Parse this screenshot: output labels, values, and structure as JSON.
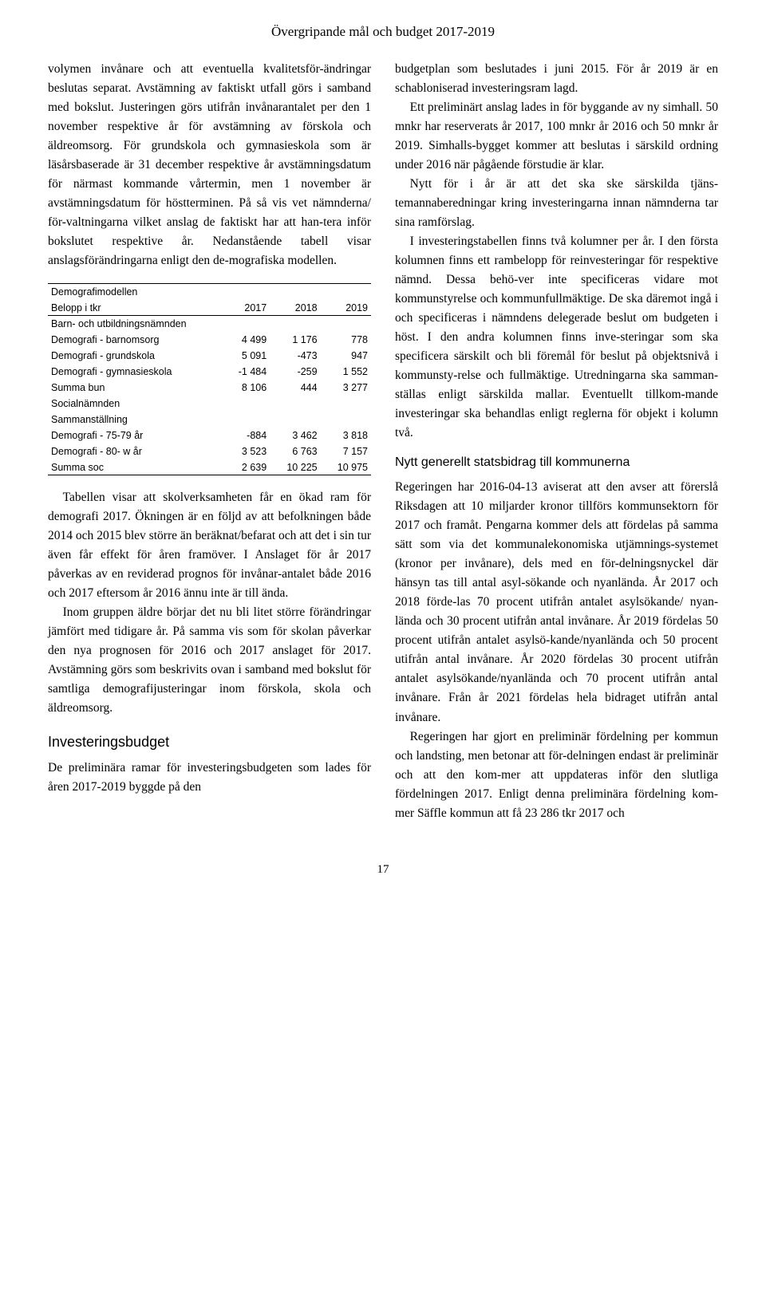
{
  "header": {
    "title": "Övergripande mål och budget 2017-2019"
  },
  "leftColumn": {
    "para1": "volymen invånare och att eventuella kvalitetsför-ändringar beslutas separat. Avstämning av faktiskt utfall görs i samband med bokslut. Justeringen görs utifrån invånarantalet per den 1 november respektive år för avstämning av förskola och äldreomsorg. För grundskola och gymnasieskola som är läsårsbaserade är 31 december respektive år avstämningsdatum för närmast kommande vårtermin, men 1 november är avstämningsdatum för höstterminen. På så vis vet nämnderna/ för-valtningarna vilket anslag de faktiskt har att han-tera inför bokslutet respektive år. Nedanstående tabell visar anslagsförändringarna enligt den de-mografiska modellen.",
    "table": {
      "title": "Demografimodellen",
      "subtitle": "Belopp i tkr",
      "years": [
        "2017",
        "2018",
        "2019"
      ],
      "section1": "Barn- och utbildningsnämnden",
      "rows1": [
        {
          "label": "Demografi - barnomsorg",
          "v": [
            "4 499",
            "1 176",
            "778"
          ]
        },
        {
          "label": "Demografi - grundskola",
          "v": [
            "5 091",
            "-473",
            "947"
          ]
        },
        {
          "label": "Demografi - gymnasieskola",
          "v": [
            "-1 484",
            "-259",
            "1 552"
          ]
        }
      ],
      "sum1": {
        "label": "Summa bun",
        "v": [
          "8 106",
          "444",
          "3 277"
        ]
      },
      "section2": "Socialnämnden",
      "section3": "Sammanställning",
      "rows2": [
        {
          "label": "Demografi - 75-79 år",
          "v": [
            "-884",
            "3 462",
            "3 818"
          ]
        },
        {
          "label": "Demografi - 80- w år",
          "v": [
            "3 523",
            "6 763",
            "7 157"
          ]
        }
      ],
      "sum2": {
        "label": "Summa soc",
        "v": [
          "2 639",
          "10 225",
          "10 975"
        ]
      }
    },
    "para2": "Tabellen visar att skolverksamheten får en ökad ram för demografi 2017. Ökningen är en följd av att befolkningen både 2014 och 2015 blev större än beräknat/befarat och att det i sin tur även får effekt för åren framöver. I Anslaget för år 2017 påverkas av en reviderad prognos för invånar-antalet både 2016 och 2017 eftersom år 2016 ännu inte är till ända.",
    "para3": "Inom gruppen äldre börjar det nu bli litet större förändringar jämfört med tidigare år. På samma vis som för skolan påverkar den nya prognosen för 2016 och 2017 anslaget för 2017. Avstämning görs som beskrivits ovan i samband med bokslut för samtliga demografijusteringar inom förskola, skola och äldreomsorg.",
    "heading1": "Investeringsbudget",
    "para4": "De preliminära ramar för investeringsbudgeten som lades för åren 2017-2019 byggde på den"
  },
  "rightColumn": {
    "para1": "budgetplan som beslutades i juni 2015. För år 2019 är en schabloniserad investeringsram lagd.",
    "para2": "Ett preliminärt anslag lades in för byggande av ny simhall. 50 mnkr har reserverats år 2017, 100 mnkr år 2016 och 50 mnkr år 2019. Simhalls-bygget kommer att beslutas i särskild ordning under 2016 när pågående förstudie är klar.",
    "para3": "Nytt för i år är att det ska ske särskilda tjäns-temannaberedningar kring investeringarna innan nämnderna tar sina ramförslag.",
    "para4": "I investeringstabellen finns två kolumner per år. I den första kolumnen finns ett rambelopp för reinvesteringar för respektive nämnd. Dessa behö-ver inte specificeras vidare mot kommunstyrelse och kommunfullmäktige. De ska däremot ingå i och specificeras i nämndens delegerade beslut om budgeten i höst. I den andra kolumnen finns inve-steringar som ska specificera särskilt och bli föremål för beslut på objektsnivå i kommunsty-relse och fullmäktige. Utredningarna ska samman-ställas enligt särskilda mallar. Eventuellt tillkom-mande investeringar ska behandlas enligt reglerna för objekt i kolumn två.",
    "heading1": "Nytt generellt statsbidrag till kommunerna",
    "para5": "Regeringen har 2016-04-13 aviserat att den avser att förerslå Riksdagen att 10 miljarder kronor tillförs kommunsektorn för 2017 och framåt. Pengarna kommer dels att fördelas på samma sätt som via det kommunalekonomiska utjämnings-systemet (kronor per invånare), dels med en för-delningsnyckel där hänsyn tas till antal asyl-sökande och nyanlända. År 2017 och 2018 förde-las 70 procent utifrån antalet asylsökande/ nyan-lända och 30 procent utifrån antal invånare. År 2019 fördelas 50 procent utifrån antalet asylsö-kande/nyanlända och 50 procent utifrån antal invånare. År 2020 fördelas 30 procent utifrån antalet asylsökande/nyanlända och 70 procent utifrån antal invånare. Från år 2021 fördelas hela bidraget utifrån antal invånare.",
    "para6": "Regeringen har gjort en preliminär fördelning per kommun och landsting, men betonar att för-delningen endast är preliminär och att den kom-mer att uppdateras inför den slutliga fördelningen 2017. Enligt denna preliminära fördelning kom-mer Säffle kommun att få 23 286 tkr 2017 och"
  },
  "pageNumber": "17"
}
